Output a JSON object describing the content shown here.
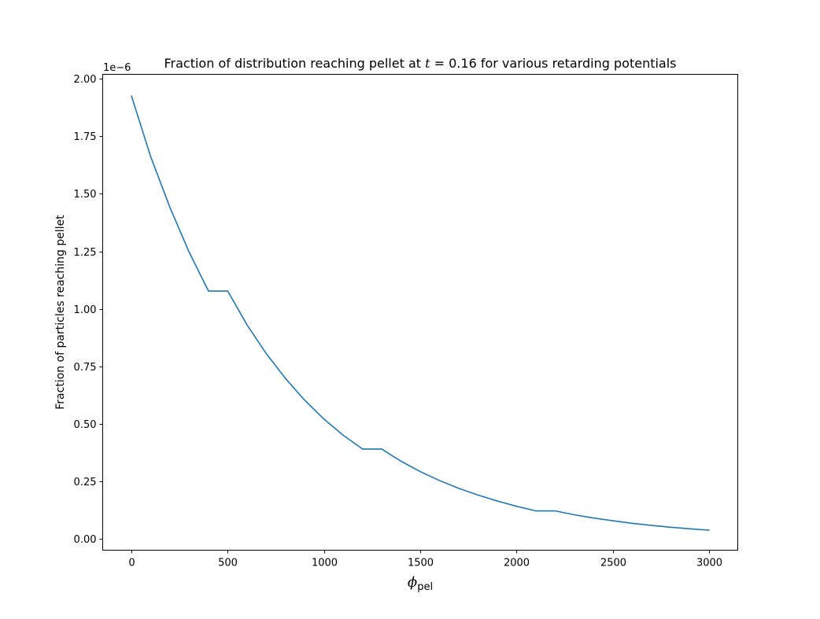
{
  "chart_data": {
    "type": "line",
    "title": {
      "prefix": "Fraction of distribution reaching pellet at ",
      "variable": "t",
      "suffix": " = 0.16 for various retarding potentials"
    },
    "xlabel": {
      "symbol": "ϕ",
      "subscript": "pel"
    },
    "ylabel": "Fraction of particles reaching pellet",
    "y_offset_label": "1e−6",
    "xlim": [
      -150,
      3150
    ],
    "ylim": [
      -0.05,
      2.02
    ],
    "x_ticks": [
      0,
      500,
      1000,
      1500,
      2000,
      2500,
      3000
    ],
    "x_tick_labels": [
      "0",
      "500",
      "1000",
      "1500",
      "2000",
      "2500",
      "3000"
    ],
    "y_ticks": [
      0.0,
      0.25,
      0.5,
      0.75,
      1.0,
      1.25,
      1.5,
      1.75,
      2.0
    ],
    "y_tick_labels": [
      "0.00",
      "0.25",
      "0.50",
      "0.75",
      "1.00",
      "1.25",
      "1.50",
      "1.75",
      "2.00"
    ],
    "grid": false,
    "series": [
      {
        "color": "#1f77b4",
        "x": [
          0,
          100,
          200,
          300,
          400,
          500,
          600,
          700,
          800,
          900,
          1000,
          1100,
          1200,
          1300,
          1400,
          1500,
          1600,
          1700,
          1800,
          1900,
          2000,
          2100,
          2200,
          2300,
          2400,
          2500,
          2600,
          2700,
          2800,
          2900,
          3000
        ],
        "y": [
          1.925,
          1.66,
          1.44,
          1.245,
          1.077,
          1.077,
          0.93,
          0.805,
          0.697,
          0.602,
          0.52,
          0.45,
          0.39,
          0.39,
          0.337,
          0.292,
          0.253,
          0.219,
          0.19,
          0.164,
          0.141,
          0.121,
          0.121,
          0.104,
          0.09,
          0.078,
          0.067,
          0.058,
          0.05,
          0.043,
          0.037
        ]
      }
    ]
  }
}
